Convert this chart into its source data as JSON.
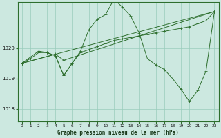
{
  "title": "Graphe pression niveau de la mer (hPa)",
  "background_color": "#cce8e0",
  "grid_color": "#99ccbb",
  "line_color": "#2d6e2d",
  "xlim": [
    -0.5,
    23.5
  ],
  "ylim": [
    1017.6,
    1021.5
  ],
  "yticks": [
    1018,
    1019,
    1020
  ],
  "xticks": [
    0,
    1,
    2,
    3,
    4,
    5,
    6,
    7,
    8,
    9,
    10,
    11,
    12,
    13,
    14,
    15,
    16,
    17,
    18,
    19,
    20,
    21,
    22,
    23
  ],
  "series": [
    {
      "x": [
        0,
        23
      ],
      "y": [
        1019.5,
        1021.2
      ]
    },
    {
      "x": [
        0,
        4,
        5,
        23
      ],
      "y": [
        1019.5,
        1019.8,
        1019.6,
        1021.2
      ]
    },
    {
      "x": [
        0,
        2,
        3,
        4,
        5,
        6,
        7,
        8,
        9,
        10,
        11,
        12,
        13,
        14,
        15,
        16,
        17,
        18,
        19,
        20,
        21,
        22,
        23
      ],
      "y": [
        1019.5,
        1019.9,
        1019.85,
        1019.75,
        1019.1,
        1019.5,
        1019.85,
        1019.95,
        1020.05,
        1020.15,
        1020.25,
        1020.3,
        1020.35,
        1020.4,
        1020.45,
        1020.5,
        1020.55,
        1020.6,
        1020.65,
        1020.7,
        1020.8,
        1020.9,
        1021.2
      ]
    },
    {
      "x": [
        0,
        1,
        2,
        3,
        4,
        5,
        6,
        7,
        8,
        9,
        10,
        11,
        12,
        13,
        14,
        15,
        16,
        17,
        18,
        19,
        20,
        21,
        22,
        23
      ],
      "y": [
        1019.5,
        1019.65,
        1019.85,
        1019.85,
        1019.75,
        1019.1,
        1019.5,
        1019.9,
        1020.6,
        1020.95,
        1021.1,
        1021.6,
        1021.35,
        1021.05,
        1020.5,
        1019.65,
        1019.45,
        1019.3,
        1019.0,
        1018.65,
        1018.25,
        1018.6,
        1019.25,
        1021.2
      ]
    }
  ]
}
